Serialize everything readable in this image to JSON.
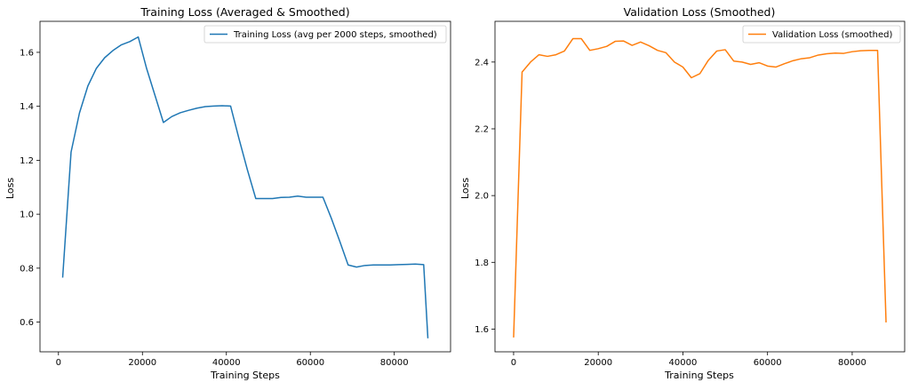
{
  "chart_data": [
    {
      "type": "line",
      "title": "Training Loss (Averaged & Smoothed)",
      "xlabel": "Training Steps",
      "ylabel": "Loss",
      "xlim": [
        -4400,
        93400
      ],
      "ylim": [
        0.49,
        1.715
      ],
      "xticks": [
        0,
        20000,
        40000,
        60000,
        80000
      ],
      "yticks": [
        0.6,
        0.8,
        1.0,
        1.2,
        1.4,
        1.6
      ],
      "xtick_labels": [
        "0",
        "20000",
        "40000",
        "60000",
        "80000"
      ],
      "ytick_labels": [
        "0.6",
        "0.8",
        "1.0",
        "1.2",
        "1.4",
        "1.6"
      ],
      "legend_position": "upper right",
      "color": "#1f77b4",
      "series": [
        {
          "name": "Training Loss (avg per 2000 steps, smoothed)",
          "x": [
            1000,
            3000,
            5000,
            7000,
            9000,
            11000,
            13000,
            15000,
            17000,
            19000,
            21000,
            23000,
            25000,
            27000,
            29000,
            31000,
            33000,
            35000,
            37000,
            39000,
            41000,
            43000,
            45000,
            47000,
            49000,
            51000,
            53000,
            55000,
            57000,
            59000,
            61000,
            63000,
            65000,
            67000,
            69000,
            71000,
            73000,
            75000,
            77000,
            79000,
            81000,
            83000,
            85000,
            87000,
            88000
          ],
          "y": [
            0.765,
            1.23,
            1.375,
            1.475,
            1.54,
            1.58,
            1.607,
            1.628,
            1.64,
            1.657,
            1.54,
            1.44,
            1.34,
            1.362,
            1.376,
            1.385,
            1.393,
            1.399,
            1.401,
            1.402,
            1.401,
            1.28,
            1.165,
            1.058,
            1.058,
            1.058,
            1.062,
            1.063,
            1.067,
            1.063,
            1.063,
            1.063,
            0.985,
            0.9,
            0.812,
            0.804,
            0.81,
            0.812,
            0.812,
            0.812,
            0.813,
            0.814,
            0.815,
            0.813,
            0.54
          ]
        }
      ]
    },
    {
      "type": "line",
      "title": "Validation Loss (Smoothed)",
      "xlabel": "Training Steps",
      "ylabel": "Loss",
      "xlim": [
        -4400,
        92400
      ],
      "ylim": [
        1.532,
        2.522
      ],
      "xticks": [
        0,
        20000,
        40000,
        60000,
        80000
      ],
      "yticks": [
        1.6,
        1.8,
        2.0,
        2.2,
        2.4
      ],
      "xtick_labels": [
        "0",
        "20000",
        "40000",
        "60000",
        "80000"
      ],
      "ytick_labels": [
        "1.6",
        "1.8",
        "2.0",
        "2.2",
        "2.4"
      ],
      "legend_position": "upper right",
      "color": "#ff7f0e",
      "series": [
        {
          "name": "Validation Loss (smoothed)",
          "x": [
            0,
            2000,
            4000,
            6000,
            8000,
            10000,
            12000,
            14000,
            16000,
            18000,
            20000,
            22000,
            24000,
            26000,
            28000,
            30000,
            32000,
            34000,
            36000,
            38000,
            40000,
            42000,
            44000,
            46000,
            48000,
            50000,
            52000,
            54000,
            56000,
            58000,
            60000,
            62000,
            64000,
            66000,
            68000,
            70000,
            72000,
            74000,
            76000,
            78000,
            80000,
            82000,
            84000,
            86000,
            88000
          ],
          "y": [
            1.575,
            2.37,
            2.4,
            2.422,
            2.417,
            2.422,
            2.433,
            2.47,
            2.47,
            2.435,
            2.44,
            2.447,
            2.462,
            2.463,
            2.45,
            2.46,
            2.449,
            2.435,
            2.428,
            2.4,
            2.385,
            2.353,
            2.365,
            2.405,
            2.433,
            2.437,
            2.403,
            2.4,
            2.393,
            2.398,
            2.388,
            2.385,
            2.395,
            2.404,
            2.41,
            2.413,
            2.421,
            2.425,
            2.427,
            2.426,
            2.431,
            2.434,
            2.435,
            2.435,
            1.62
          ]
        }
      ]
    }
  ]
}
